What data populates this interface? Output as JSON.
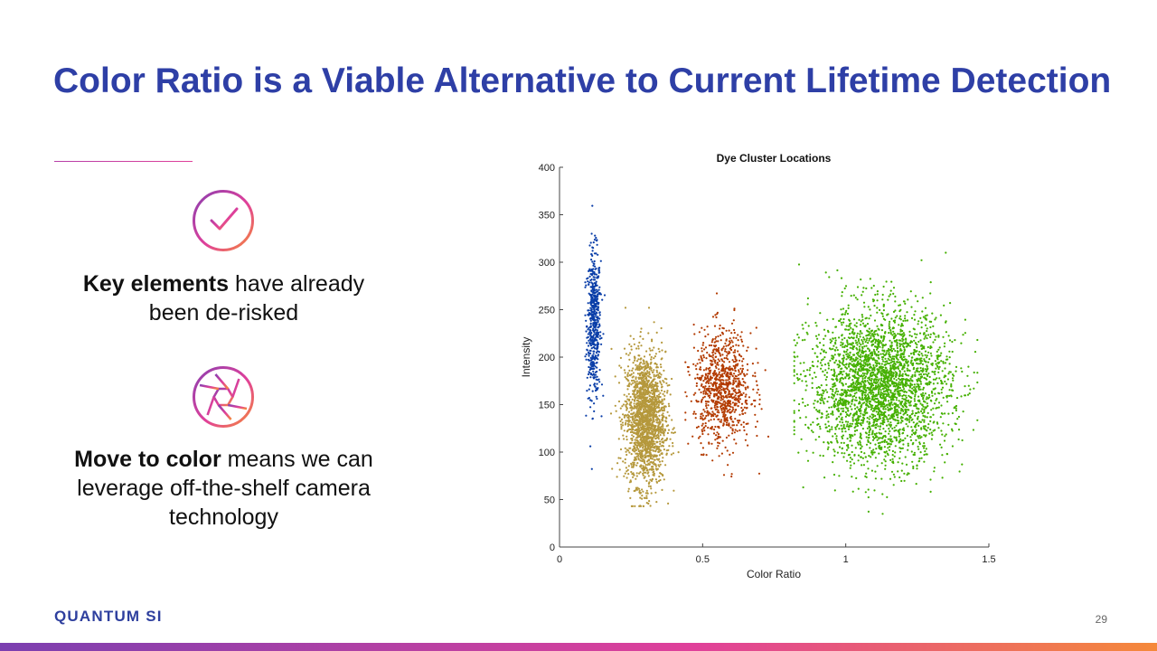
{
  "slide": {
    "title": "Color Ratio is a Viable Alternative to Current Lifetime Detection",
    "page_number": "29",
    "logo": "QUANTUM SI",
    "accent_gradient": [
      "#7b3fb0",
      "#e0409a",
      "#f5893a"
    ],
    "title_color": "#2e3fa6"
  },
  "points": [
    {
      "icon": "checkmark-circle-icon",
      "bold": "Key elements",
      "rest": " have already been de-risked"
    },
    {
      "icon": "camera-aperture-icon",
      "bold": "Move to color",
      "rest": " means we can leverage off-the-shelf camera technology"
    }
  ],
  "chart_data": {
    "type": "scatter",
    "title": "Dye Cluster Locations",
    "xlabel": "Color Ratio",
    "ylabel": "Intensity",
    "xlim": [
      0,
      1.5
    ],
    "ylim": [
      0,
      400
    ],
    "xticks": [
      "0",
      "0.5",
      "1",
      "1.5"
    ],
    "yticks": [
      "0",
      "50",
      "100",
      "150",
      "200",
      "250",
      "300",
      "350",
      "400"
    ],
    "grid": false,
    "clusters": [
      {
        "color": "#0a3ea8",
        "center": [
          0.12,
          235
        ],
        "spread": [
          0.012,
          38
        ],
        "count": 550,
        "x_range": [
          0.09,
          0.17
        ],
        "y_range": [
          70,
          376
        ]
      },
      {
        "color": "#b5983c",
        "center": [
          0.3,
          135
        ],
        "spread": [
          0.035,
          35
        ],
        "count": 1800,
        "x_range": [
          0.18,
          0.43
        ],
        "y_range": [
          43,
          252
        ]
      },
      {
        "color": "#b33b00",
        "center": [
          0.57,
          168
        ],
        "spread": [
          0.05,
          30
        ],
        "count": 900,
        "x_range": [
          0.44,
          0.74
        ],
        "y_range": [
          70,
          280
        ]
      },
      {
        "color": "#45b000",
        "center": [
          1.12,
          170
        ],
        "spread": [
          0.12,
          40
        ],
        "count": 3000,
        "x_range": [
          0.82,
          1.46
        ],
        "y_range": [
          35,
          310
        ]
      }
    ]
  }
}
